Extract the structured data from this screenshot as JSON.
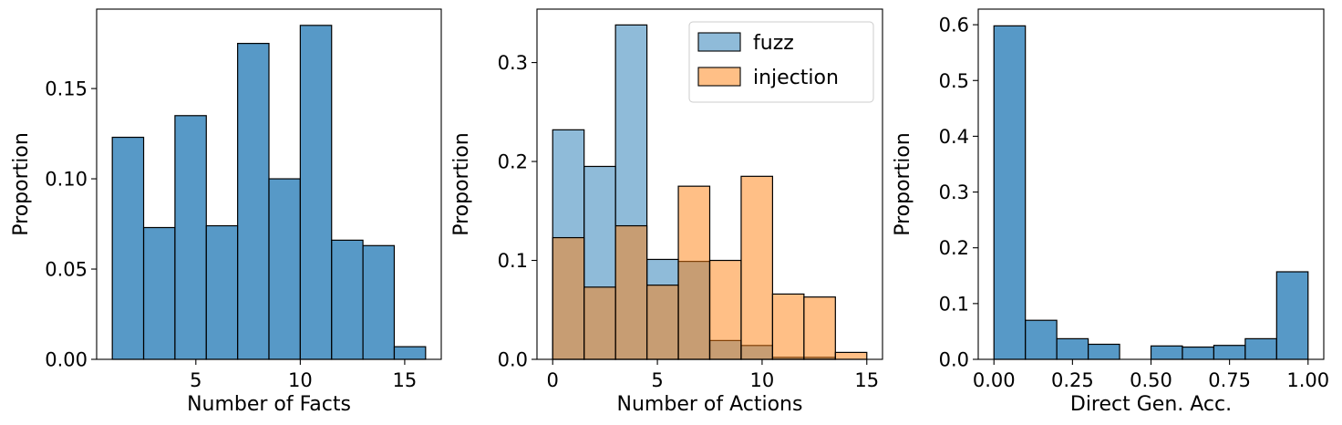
{
  "chart_data": [
    {
      "type": "bar",
      "title": "",
      "xlabel": "Number of Facts",
      "ylabel": "Proportion",
      "xlim": [
        0.25,
        16.75
      ],
      "ylim": [
        0,
        0.194
      ],
      "xticks": [
        5,
        10,
        15
      ],
      "xtick_labels": [
        "5",
        "10",
        "15"
      ],
      "yticks": [
        0,
        0.05,
        0.1,
        0.15
      ],
      "ytick_labels": [
        "0.00",
        "0.05",
        "0.10",
        "0.15"
      ],
      "bin_edges": [
        1.0,
        2.5,
        4.0,
        5.5,
        7.0,
        8.5,
        10.0,
        11.5,
        13.0,
        14.5,
        16.0
      ],
      "series": [
        {
          "name": "facts",
          "color": "#1f77b4",
          "alpha": 0.75,
          "values": [
            0.123,
            0.073,
            0.135,
            0.074,
            0.175,
            0.1,
            0.185,
            0.066,
            0.063,
            0.007
          ]
        }
      ]
    },
    {
      "type": "bar",
      "title": "",
      "xlabel": "Number of Actions",
      "ylabel": "Proportion",
      "xlim": [
        -0.75,
        15.75
      ],
      "ylim": [
        0,
        0.354
      ],
      "xticks": [
        0,
        5,
        10,
        15
      ],
      "xtick_labels": [
        "0",
        "5",
        "10",
        "15"
      ],
      "yticks": [
        0,
        0.1,
        0.2,
        0.3
      ],
      "ytick_labels": [
        "0.0",
        "0.1",
        "0.2",
        "0.3"
      ],
      "bin_edges": [
        0.0,
        1.5,
        3.0,
        4.5,
        6.0,
        7.5,
        9.0,
        10.5,
        12.0,
        13.5,
        15.0
      ],
      "legend": {
        "position": "upper right",
        "entries": [
          "fuzz",
          "injection"
        ]
      },
      "series": [
        {
          "name": "fuzz",
          "color": "#1f77b4",
          "alpha": 0.5,
          "values": [
            0.232,
            0.195,
            0.338,
            0.101,
            0.099,
            0.019,
            0.014,
            0.002,
            0.002,
            0.0
          ]
        },
        {
          "name": "injection",
          "color": "#ff7f0e",
          "alpha": 0.5,
          "values": [
            0.123,
            0.073,
            0.135,
            0.075,
            0.175,
            0.1,
            0.185,
            0.066,
            0.063,
            0.007
          ]
        }
      ]
    },
    {
      "type": "bar",
      "title": "",
      "xlabel": "Direct Gen. Acc.",
      "ylabel": "Proportion",
      "xlim": [
        -0.05,
        1.05
      ],
      "ylim": [
        0,
        0.628
      ],
      "xticks": [
        0,
        0.25,
        0.5,
        0.75,
        1.0
      ],
      "xtick_labels": [
        "0.00",
        "0.25",
        "0.50",
        "0.75",
        "1.00"
      ],
      "yticks": [
        0,
        0.1,
        0.2,
        0.3,
        0.4,
        0.5,
        0.6
      ],
      "ytick_labels": [
        "0.0",
        "0.1",
        "0.2",
        "0.3",
        "0.4",
        "0.5",
        "0.6"
      ],
      "bin_edges": [
        0.0,
        0.1,
        0.2,
        0.3,
        0.4,
        0.5,
        0.6,
        0.7,
        0.8,
        0.9,
        1.0
      ],
      "series": [
        {
          "name": "direct_gen_acc",
          "color": "#1f77b4",
          "alpha": 0.75,
          "values": [
            0.598,
            0.07,
            0.037,
            0.027,
            0.0,
            0.024,
            0.022,
            0.025,
            0.037,
            0.157
          ]
        }
      ]
    }
  ]
}
